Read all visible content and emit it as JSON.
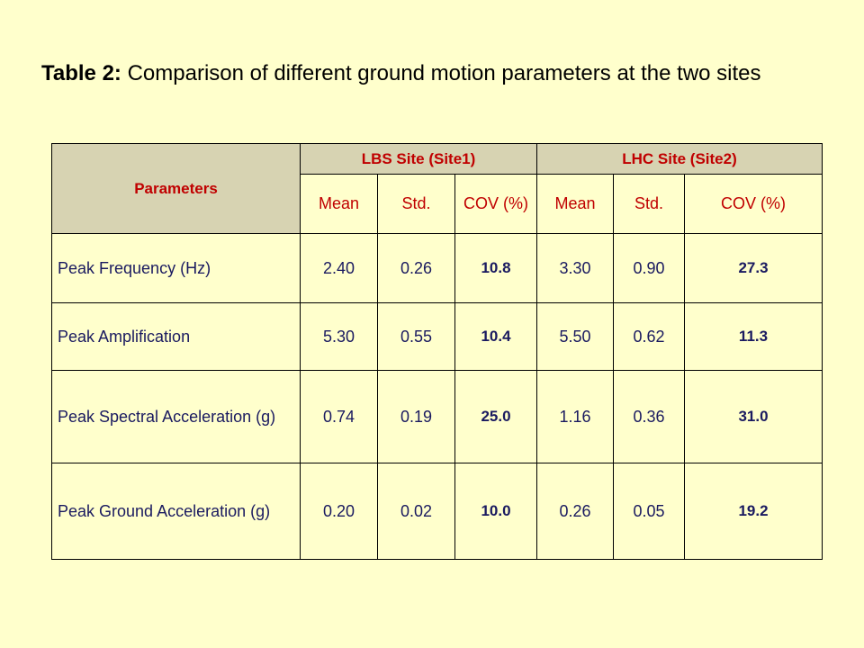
{
  "title": {
    "label": "Table 2:",
    "text": "Comparison of different ground motion parameters at the two sites"
  },
  "table": {
    "param_header": "Parameters",
    "site1": "LBS  Site (Site1)",
    "site2": "LHC Site (Site2)",
    "subheaders": [
      "Mean",
      "Std.",
      "COV (%)",
      "Mean",
      "Std.",
      "COV (%)"
    ],
    "rows": [
      {
        "param": "Peak Frequency (Hz)",
        "values": [
          "2.40",
          "0.26",
          "10.8",
          "3.30",
          "0.90",
          "27.3"
        ]
      },
      {
        "param": "Peak Amplification",
        "values": [
          "5.30",
          "0.55",
          "10.4",
          "5.50",
          "0.62",
          "11.3"
        ]
      },
      {
        "param": "Peak Spectral Acceleration (g)",
        "values": [
          "0.74",
          "0.19",
          "25.0",
          "1.16",
          "0.36",
          "31.0"
        ]
      },
      {
        "param": "Peak Ground Acceleration (g)",
        "values": [
          "0.20",
          "0.02",
          "10.0",
          "0.26",
          "0.05",
          "19.2"
        ]
      }
    ]
  },
  "colors": {
    "background": "#FFFFCC",
    "header_fill": "#D7D3B2",
    "header_text": "#C00000",
    "body_text": "#1A1A60"
  }
}
